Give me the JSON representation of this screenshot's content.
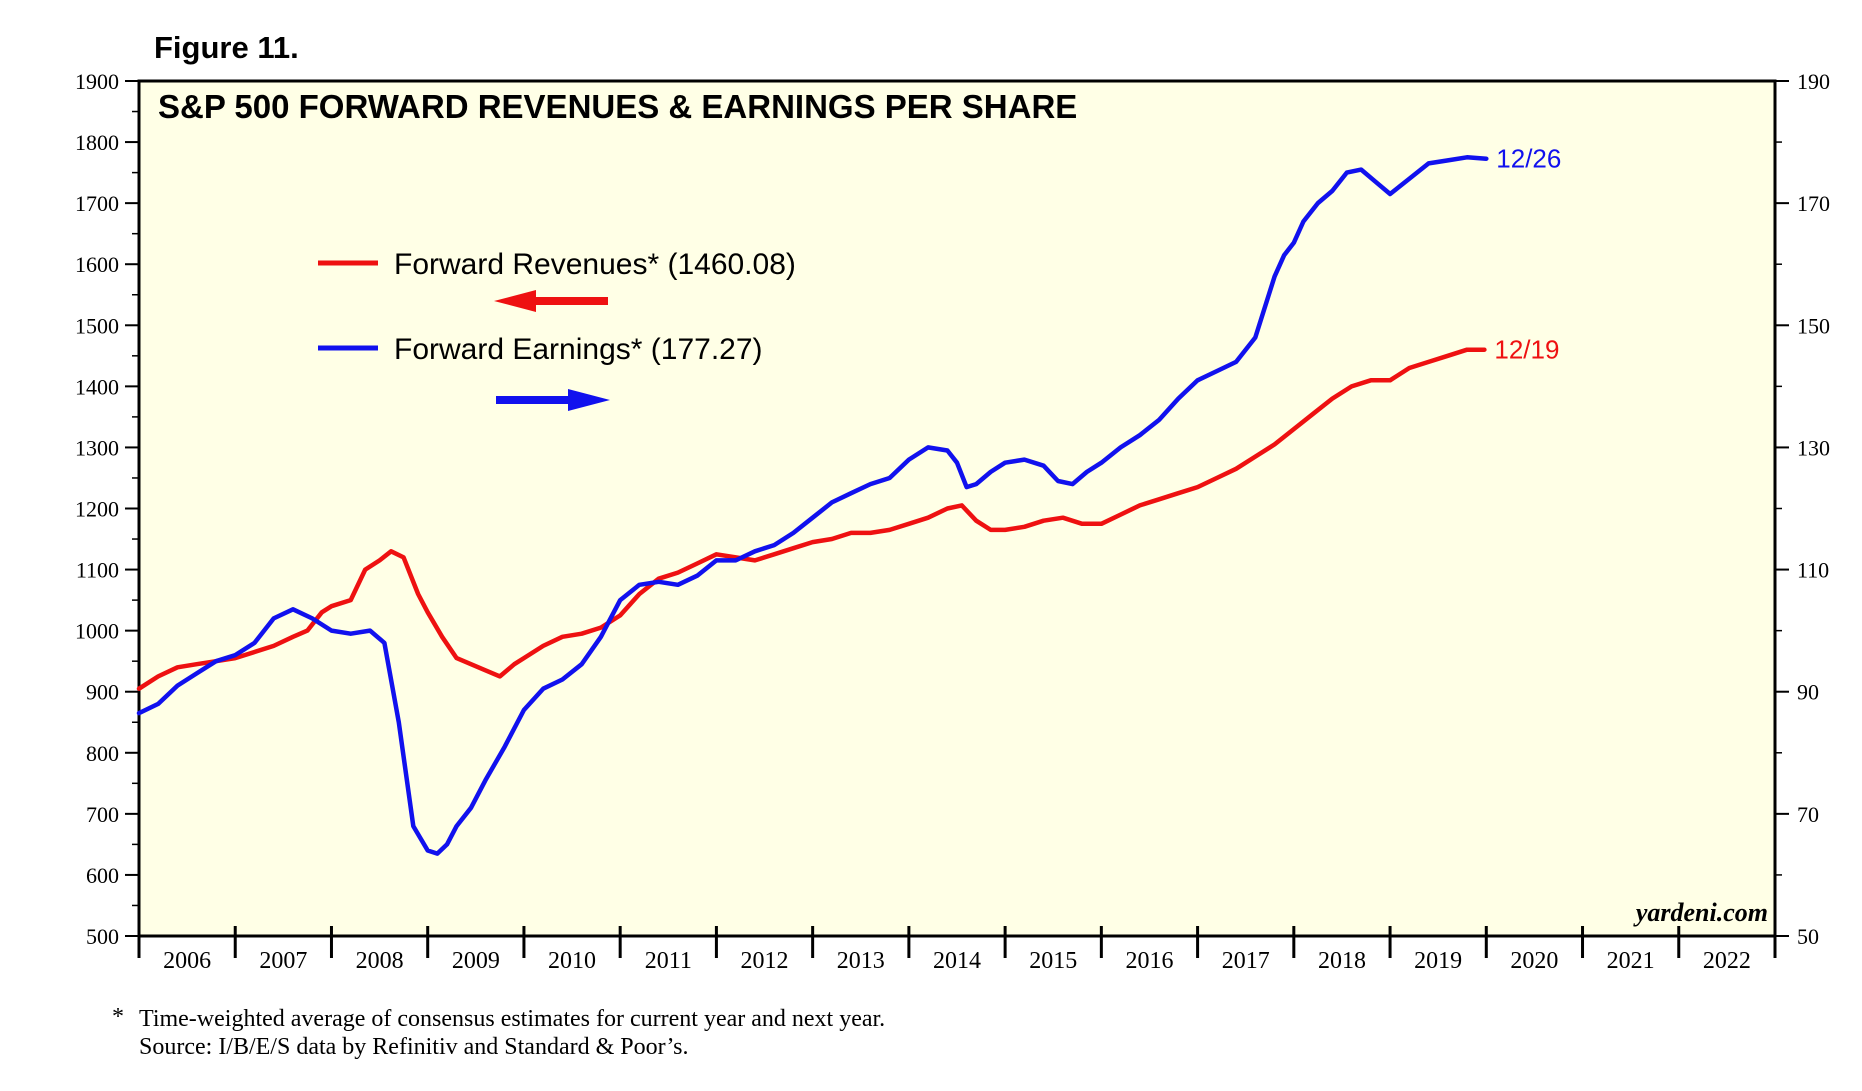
{
  "figure_label": "Figure 11.",
  "chart_data": {
    "type": "line",
    "title": "S&P 500 FORWARD REVENUES & EARNINGS PER SHARE",
    "x_axis": {
      "type": "time",
      "range": [
        2006.0,
        2023.0
      ],
      "year_labels": [
        "2006",
        "2007",
        "2008",
        "2009",
        "2010",
        "2011",
        "2012",
        "2013",
        "2014",
        "2015",
        "2016",
        "2017",
        "2018",
        "2019",
        "2020",
        "2021",
        "2022"
      ]
    },
    "left_axis": {
      "range": [
        500,
        1900
      ],
      "ticks": [
        "500",
        "600",
        "700",
        "800",
        "900",
        "1000",
        "1100",
        "1200",
        "1300",
        "1400",
        "1500",
        "1600",
        "1700",
        "1800",
        "1900"
      ]
    },
    "right_axis": {
      "range": [
        50,
        190
      ],
      "ticks": [
        "50",
        "70",
        "90",
        "110",
        "130",
        "150",
        "170",
        "190"
      ]
    },
    "grid": false,
    "background": "#FFFFE6",
    "series": [
      {
        "name": "Forward Revenues* (1460.08)",
        "axis": "left",
        "color": "#EE1111",
        "arrow_direction": "left",
        "end_label": "12/19",
        "x": [
          2006.0,
          2006.2,
          2006.4,
          2006.6,
          2006.8,
          2007.0,
          2007.2,
          2007.4,
          2007.6,
          2007.75,
          2007.9,
          2008.0,
          2008.2,
          2008.35,
          2008.5,
          2008.62,
          2008.75,
          2008.9,
          2009.0,
          2009.15,
          2009.3,
          2009.45,
          2009.6,
          2009.75,
          2009.9,
          2010.0,
          2010.2,
          2010.4,
          2010.6,
          2010.8,
          2011.0,
          2011.2,
          2011.4,
          2011.6,
          2011.8,
          2012.0,
          2012.2,
          2012.4,
          2012.6,
          2012.8,
          2013.0,
          2013.2,
          2013.4,
          2013.6,
          2013.8,
          2014.0,
          2014.2,
          2014.4,
          2014.55,
          2014.7,
          2014.85,
          2015.0,
          2015.2,
          2015.4,
          2015.6,
          2015.8,
          2016.0,
          2016.2,
          2016.4,
          2016.6,
          2016.8,
          2017.0,
          2017.2,
          2017.4,
          2017.6,
          2017.8,
          2018.0,
          2018.2,
          2018.4,
          2018.6,
          2018.8,
          2019.0,
          2019.2,
          2019.4,
          2019.6,
          2019.8,
          2019.98
        ],
        "y": [
          905,
          925,
          940,
          945,
          950,
          955,
          965,
          975,
          990,
          1000,
          1030,
          1040,
          1050,
          1100,
          1115,
          1130,
          1120,
          1060,
          1030,
          990,
          955,
          945,
          935,
          925,
          945,
          955,
          975,
          990,
          995,
          1005,
          1025,
          1060,
          1085,
          1095,
          1110,
          1125,
          1120,
          1115,
          1125,
          1135,
          1145,
          1150,
          1160,
          1160,
          1165,
          1175,
          1185,
          1200,
          1205,
          1180,
          1165,
          1165,
          1170,
          1180,
          1185,
          1175,
          1175,
          1190,
          1205,
          1215,
          1225,
          1235,
          1250,
          1265,
          1285,
          1305,
          1330,
          1355,
          1380,
          1400,
          1410,
          1410,
          1430,
          1440,
          1450,
          1460,
          1460
        ]
      },
      {
        "name": "Forward Earnings* (177.27)",
        "axis": "right",
        "color": "#1111EE",
        "arrow_direction": "right",
        "end_label": "12/26",
        "x": [
          2006.0,
          2006.2,
          2006.4,
          2006.6,
          2006.8,
          2007.0,
          2007.2,
          2007.4,
          2007.6,
          2007.8,
          2008.0,
          2008.2,
          2008.4,
          2008.55,
          2008.7,
          2008.85,
          2009.0,
          2009.1,
          2009.2,
          2009.3,
          2009.45,
          2009.6,
          2009.8,
          2010.0,
          2010.2,
          2010.4,
          2010.6,
          2010.8,
          2011.0,
          2011.2,
          2011.4,
          2011.6,
          2011.8,
          2012.0,
          2012.2,
          2012.4,
          2012.6,
          2012.8,
          2013.0,
          2013.2,
          2013.4,
          2013.6,
          2013.8,
          2014.0,
          2014.2,
          2014.4,
          2014.5,
          2014.6,
          2014.7,
          2014.85,
          2015.0,
          2015.2,
          2015.4,
          2015.55,
          2015.7,
          2015.85,
          2016.0,
          2016.2,
          2016.4,
          2016.6,
          2016.8,
          2017.0,
          2017.2,
          2017.4,
          2017.6,
          2017.8,
          2017.9,
          2018.0,
          2018.1,
          2018.25,
          2018.4,
          2018.55,
          2018.7,
          2018.85,
          2019.0,
          2019.2,
          2019.4,
          2019.6,
          2019.8,
          2020.0
        ],
        "y": [
          86.5,
          88,
          91,
          93,
          95,
          96,
          98,
          102,
          103.5,
          102,
          100,
          99.5,
          100,
          98,
          85,
          68,
          64,
          63.5,
          65,
          68,
          71,
          75.5,
          81,
          87,
          90.5,
          92,
          94.5,
          99,
          105,
          107.5,
          108,
          107.5,
          109,
          111.5,
          111.5,
          113,
          114,
          116,
          118.5,
          121,
          122.5,
          124,
          125,
          128,
          130,
          129.5,
          127.5,
          123.5,
          124,
          126,
          127.5,
          128,
          127,
          124.5,
          124,
          126,
          127.5,
          130,
          132,
          134.5,
          138,
          141,
          142.5,
          144,
          148,
          158,
          161.5,
          163.5,
          167,
          170,
          172,
          175,
          175.5,
          173.5,
          171.5,
          174,
          176.5,
          177,
          177.5,
          177.27
        ]
      }
    ]
  },
  "footnote": {
    "marker": "*",
    "line1": "Time-weighted average of consensus estimates for current year and next year.",
    "line2": "Source: I/B/E/S data by Refinitiv and Standard & Poor’s."
  },
  "watermark": "yardeni.com"
}
